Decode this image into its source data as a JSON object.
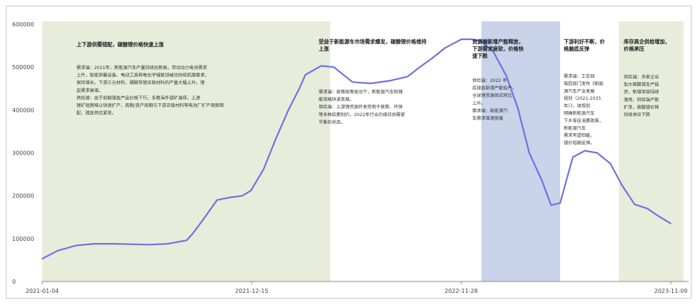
{
  "colors": {
    "line": "#6f72e0",
    "region_green": "#e8ecdb",
    "region_blue": "#c9d3ea",
    "axis": "#444444"
  },
  "chart_data": {
    "type": "line",
    "title": "",
    "xlabel": "",
    "ylabel": "",
    "x_tick_labels": [
      "2021-01-04",
      "2021-12-15",
      "2022-11-28",
      "2023-11-09"
    ],
    "y_tick_labels": [
      "0",
      "100000",
      "200000",
      "300000",
      "400000",
      "500000",
      "600000"
    ],
    "ylim": [
      0,
      600000
    ],
    "grid": false,
    "series": [
      {
        "x": [
          "2021-01-04",
          "2021-01-30",
          "2021-03-01",
          "2021-03-31",
          "2021-04-30",
          "2021-05-31",
          "2021-06-30",
          "2021-07-31",
          "2021-08-31",
          "2021-09-10",
          "2021-09-30",
          "2021-10-20",
          "2021-11-10",
          "2021-12-01",
          "2021-12-15",
          "2022-01-05",
          "2022-01-25",
          "2022-02-15",
          "2022-03-05",
          "2022-03-15",
          "2022-04-10",
          "2022-05-01",
          "2022-06-01",
          "2022-07-01",
          "2022-08-01",
          "2022-08-31",
          "2022-09-20",
          "2022-10-10",
          "2022-11-01",
          "2022-11-28",
          "2022-12-15",
          "2022-12-31",
          "2023-01-20",
          "2023-02-10",
          "2023-03-01",
          "2023-03-20",
          "2023-04-10",
          "2023-04-25",
          "2023-05-10",
          "2023-05-31",
          "2023-06-20",
          "2023-07-10",
          "2023-08-01",
          "2023-08-20",
          "2023-09-10",
          "2023-10-01",
          "2023-10-20",
          "2023-11-09"
        ],
        "values": [
          53000,
          72000,
          84000,
          88000,
          88000,
          87000,
          86000,
          88000,
          96000,
          112000,
          150000,
          190000,
          196000,
          200000,
          212000,
          262000,
          332000,
          400000,
          450000,
          482000,
          503000,
          500000,
          465000,
          462000,
          468000,
          478000,
          500000,
          520000,
          545000,
          565000,
          565000,
          560000,
          535000,
          480000,
          405000,
          300000,
          235000,
          178000,
          183000,
          290000,
          305000,
          300000,
          275000,
          225000,
          180000,
          170000,
          152000,
          135000
        ]
      }
    ],
    "regions": [
      {
        "x_start": "2021-01-04",
        "x_end": "2022-04-25",
        "color": "region_green"
      },
      {
        "x_start": "2022-12-31",
        "x_end": "2023-05-10",
        "color": "region_blue"
      },
      {
        "x_start": "2023-08-15",
        "x_end": "2023-11-30",
        "color": "region_green"
      }
    ],
    "annotations": [
      {
        "title": "上下游供需错配，碳酸锂价格快速上涨",
        "lines": [
          "需求端：2021年，新能源汽车产量持续创新高，带动动力电池需求",
          "上升，智能穿戴设备、电动工具和电化学储能领域也持续拓展需求，",
          "保持增长。下游三元材料、磷酸铁锂正极材料的产量大幅上升，锂",
          "盐需求高增。",
          "供给端：由于前期锂盐产品价格下行，多数海外锂矿减停，上游",
          "锂矿短期难以快速扩产，周期/变产周期与下游正极材料等电池厂扩产周期错",
          "配，锂盐供应紧张。"
        ]
      },
      {
        "title": "受益于新能源车市场需求爆发，碳酸锂价格维持上涨",
        "lines": [
          "需求端：政策政策驱动下，新能源汽车和储",
          "能领域快速发展。",
          "供给端：上游锂资源开发受制于政策、环保",
          "等多种因素制约，2022年行业仍维持供需紧",
          "平衡的状态。"
        ]
      },
      {
        "title": "资源端新增产能释放，下游需求疲软，价格快速下跌",
        "lines": [
          "供给端：2022 年",
          "底锂盐新增产能投产，",
          "全球锂资源供应同比",
          "上升。",
          "需求端：新能源汽",
          "车需求增速放缓"
        ]
      },
      {
        "title": "下游利好不断，价格触底反弹",
        "lines": [
          "需求端：工信部",
          "等四部门发布《新能",
          "源汽车产业发展",
          "规划（2021-2035",
          "年）》，该规划",
          "明确新能源汽车",
          "下乡等促消费政策，",
          "新能源汽车",
          "需求有望回暖，",
          "锂价短期反弹。"
        ]
      },
      {
        "title": "库存高企供给增加，价格承压",
        "lines": [
          "供给端：多家企业",
          "加大碳酸锂生产投",
          "资，新增项目陆续",
          "落地，供给端产能",
          "扩张，碳酸锂价格",
          "持续承压下跌"
        ]
      }
    ]
  }
}
